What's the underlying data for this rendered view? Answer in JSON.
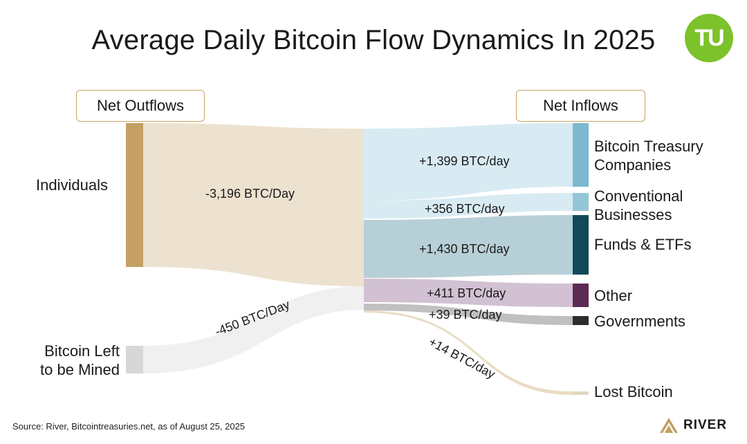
{
  "title": "Average Daily Bitcoin Flow Dynamics In 2025",
  "logo_text": "TU",
  "headers": {
    "outflows": "Net Outflows",
    "inflows": "Net Inflows"
  },
  "sources": [
    {
      "label_lines": [
        "Individuals"
      ],
      "flow_label": "-3,196 BTC/Day",
      "value": -3196,
      "color": "#c4a065",
      "band_color": "#ede2cf"
    },
    {
      "label_lines": [
        "Bitcoin Left",
        "to be Mined"
      ],
      "flow_label": "-450 BTC/Day",
      "value": -450,
      "color": "#d7d7d7",
      "band_color": "#f0f0f0"
    }
  ],
  "targets": [
    {
      "label_lines": [
        "Bitcoin Treasury",
        "Companies"
      ],
      "flow_label": "+1,399 BTC/day",
      "value": 1399,
      "color": "#7cb8cf",
      "band_color": "#d8ebf2"
    },
    {
      "label_lines": [
        "Conventional",
        "Businesses"
      ],
      "flow_label": "+356 BTC/day",
      "value": 356,
      "color": "#94c6d8",
      "band_color": "#d8ebf2"
    },
    {
      "label_lines": [
        "Funds & ETFs"
      ],
      "flow_label": "+1,430 BTC/day",
      "value": 1430,
      "color": "#13495a",
      "band_color": "#b7cfd6"
    },
    {
      "label_lines": [
        "Other"
      ],
      "flow_label": "+411 BTC/day",
      "value": 411,
      "color": "#5b2a55",
      "band_color": "#d1c1d2"
    },
    {
      "label_lines": [
        "Governments"
      ],
      "flow_label": "+39 BTC/day",
      "value": 39,
      "color": "#2d2d2d",
      "band_color": "#c0c0c0"
    },
    {
      "label_lines": [
        "Lost Bitcoin"
      ],
      "flow_label": "+14 BTC/day",
      "value": 14,
      "color": "#e3d6bd",
      "band_color": "#e8dcc4"
    }
  ],
  "source_note": "Source: River, Bitcointreasuries.net, as of August 25, 2025",
  "brand": "RIVER",
  "brand_color": "#c4a065"
}
